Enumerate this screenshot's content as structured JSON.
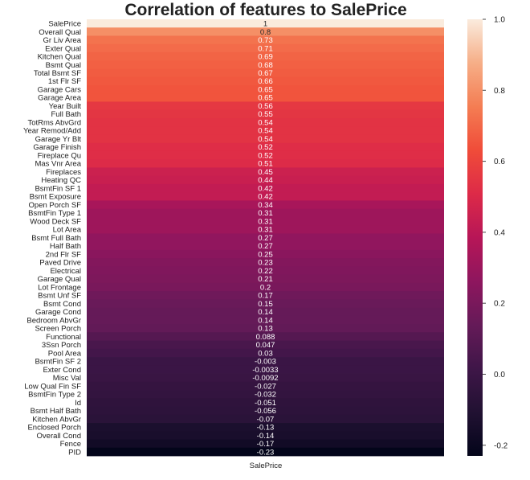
{
  "chart_data": {
    "type": "heatmap",
    "title": "Correlation of features to SalePrice",
    "columns": [
      "SalePrice"
    ],
    "rows": [
      "SalePrice",
      "Overall Qual",
      "Gr Liv Area",
      "Exter Qual",
      "Kitchen Qual",
      "Bsmt Qual",
      "Total Bsmt SF",
      "1st Flr SF",
      "Garage Cars",
      "Garage Area",
      "Year Built",
      "Full Bath",
      "TotRms AbvGrd",
      "Year Remod/Add",
      "Garage Yr Blt",
      "Garage Finish",
      "Fireplace Qu",
      "Mas Vnr Area",
      "Fireplaces",
      "Heating QC",
      "BsmtFin SF 1",
      "Bsmt Exposure",
      "Open Porch SF",
      "BsmtFin Type 1",
      "Wood Deck SF",
      "Lot Area",
      "Bsmt Full Bath",
      "Half Bath",
      "2nd Flr SF",
      "Paved Drive",
      "Electrical",
      "Garage Qual",
      "Lot Frontage",
      "Bsmt Unf SF",
      "Bsmt Cond",
      "Garage Cond",
      "Bedroom AbvGr",
      "Screen Porch",
      "Functional",
      "3Ssn Porch",
      "Pool Area",
      "BsmtFin SF 2",
      "Exter Cond",
      "Misc Val",
      "Low Qual Fin SF",
      "BsmtFin Type 2",
      "Id",
      "Bsmt Half Bath",
      "Kitchen AbvGr",
      "Enclosed Porch",
      "Overall Cond",
      "Fence",
      "PID"
    ],
    "values": [
      1,
      0.8,
      0.73,
      0.71,
      0.69,
      0.68,
      0.67,
      0.66,
      0.65,
      0.65,
      0.56,
      0.55,
      0.54,
      0.54,
      0.54,
      0.52,
      0.52,
      0.51,
      0.45,
      0.44,
      0.42,
      0.42,
      0.34,
      0.31,
      0.31,
      0.31,
      0.27,
      0.27,
      0.25,
      0.23,
      0.22,
      0.21,
      0.2,
      0.17,
      0.15,
      0.14,
      0.14,
      0.13,
      0.088,
      0.047,
      0.03,
      -0.003,
      -0.0033,
      -0.0092,
      -0.027,
      -0.032,
      -0.051,
      -0.056,
      -0.07,
      -0.13,
      -0.14,
      -0.17,
      -0.23
    ],
    "value_labels": [
      "1",
      "0.8",
      "0.73",
      "0.71",
      "0.69",
      "0.68",
      "0.67",
      "0.66",
      "0.65",
      "0.65",
      "0.56",
      "0.55",
      "0.54",
      "0.54",
      "0.54",
      "0.52",
      "0.52",
      "0.51",
      "0.45",
      "0.44",
      "0.42",
      "0.42",
      "0.34",
      "0.31",
      "0.31",
      "0.31",
      "0.27",
      "0.27",
      "0.25",
      "0.23",
      "0.22",
      "0.21",
      "0.2",
      "0.17",
      "0.15",
      "0.14",
      "0.14",
      "0.13",
      "0.088",
      "0.047",
      "0.03",
      "-0.003",
      "-0.0033",
      "-0.0092",
      "-0.027",
      "-0.032",
      "-0.051",
      "-0.056",
      "-0.07",
      "-0.13",
      "-0.14",
      "-0.17",
      "-0.23"
    ],
    "colorbar": {
      "ticks": [
        "-0.2",
        "0.0",
        "0.2",
        "0.4",
        "0.6",
        "0.8",
        "1.0"
      ],
      "tick_values": [
        -0.2,
        0,
        0.2,
        0.4,
        0.6,
        0.8,
        1.0
      ],
      "range": [
        -0.23,
        1.0
      ],
      "colormap": "rocket"
    },
    "annotations": true,
    "grid": false
  }
}
